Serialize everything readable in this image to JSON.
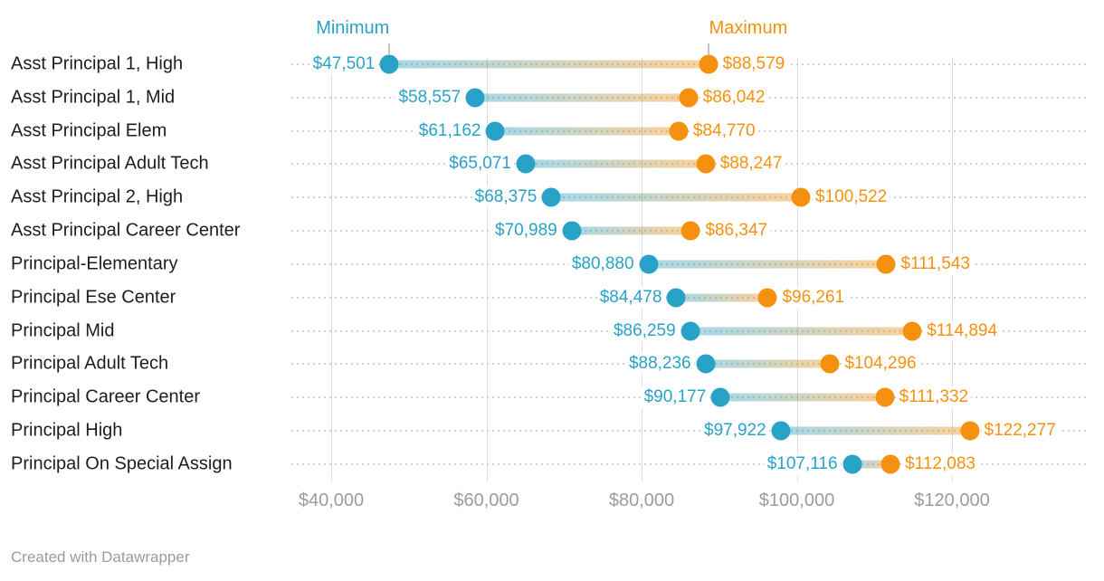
{
  "header": {
    "min_label": "Minimum",
    "max_label": "Maximum"
  },
  "footer": {
    "text": "Created with Datawrapper"
  },
  "colors": {
    "min": "#29a2c8",
    "max": "#f5910e",
    "min_bar": "rgba(41,162,200,0.42)",
    "max_bar": "rgba(245,145,14,0.42)",
    "category_text": "#1d1d1d",
    "axis_text": "#9b9b9b",
    "gridline": "#dcdcdc",
    "dotted_line": "#d2d2d2",
    "footer_text": "#9b9b9b"
  },
  "chart_data": {
    "type": "dumbbell-range",
    "title": "",
    "legend_position": "top",
    "grid": "vertical-major-plus-dotted-rows",
    "categories": [
      "Asst Principal 1, High",
      "Asst Principal 1, Mid",
      "Asst Principal Elem",
      "Asst Principal Adult Tech",
      "Asst Principal 2, High",
      "Asst Principal Career Center",
      "Principal-Elementary",
      "Principal Ese Center",
      "Principal Mid",
      "Principal Adult Tech",
      "Principal Career Center",
      "Principal High",
      "Principal On Special Assign"
    ],
    "series": [
      {
        "name": "Minimum",
        "values": [
          47501,
          58557,
          61162,
          65071,
          68375,
          70989,
          80880,
          84478,
          86259,
          88236,
          90177,
          97922,
          107116
        ],
        "labels": [
          "$47,501",
          "$58,557",
          "$61,162",
          "$65,071",
          "$68,375",
          "$70,989",
          "$80,880",
          "$84,478",
          "$86,259",
          "$88,236",
          "$90,177",
          "$97,922",
          "$107,116"
        ]
      },
      {
        "name": "Maximum",
        "values": [
          88579,
          86042,
          84770,
          88247,
          100522,
          86347,
          111543,
          96261,
          114894,
          104296,
          111332,
          122277,
          112083
        ],
        "labels": [
          "$88,579",
          "$86,042",
          "$84,770",
          "$88,247",
          "$100,522",
          "$86,347",
          "$111,543",
          "$96,261",
          "$114,894",
          "$104,296",
          "$111,332",
          "$122,277",
          "$112,083"
        ]
      }
    ],
    "x_axis": {
      "tick_values": [
        40000,
        60000,
        80000,
        100000,
        120000
      ],
      "tick_labels": [
        "$40,000",
        "$60,000",
        "$80,000",
        "$100,000",
        "$120,000"
      ],
      "xlim": [
        34900,
        137500
      ]
    }
  }
}
